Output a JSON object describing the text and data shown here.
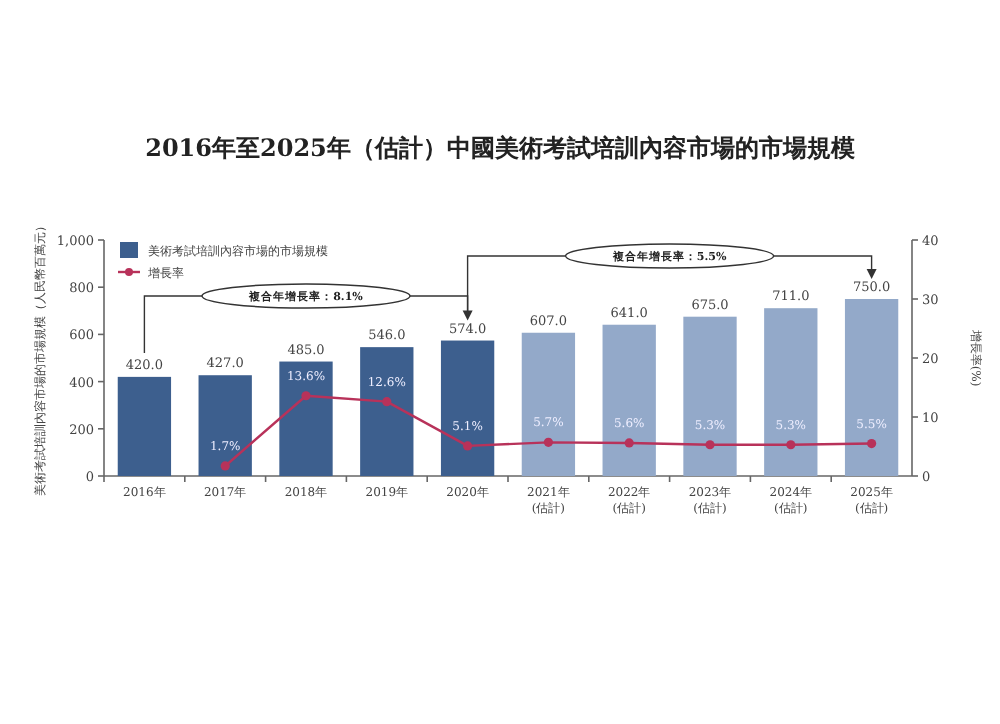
{
  "chart_data": {
    "type": "bar",
    "title": "2016年至2025年（估計）中國美術考試培訓內容市場的市場規模",
    "ylabel": "美術考試培訓內容市場的市場規模（人民幣百萬元）",
    "y2label": "增長率(%)",
    "categories": [
      "2016年",
      "2017年",
      "2018年",
      "2019年",
      "2020年",
      "2021年\n(估計)",
      "2022年\n(估計)",
      "2023年\n(估計)",
      "2024年\n(估計)",
      "2025年\n(估計)"
    ],
    "series": [
      {
        "name": "美術考試培訓內容市場的市場規模",
        "color": "#3d5f8e",
        "colors": [
          "#3d5f8e",
          "#3d5f8e",
          "#3d5f8e",
          "#3d5f8e",
          "#3d5f8e",
          "#93a9c9",
          "#93a9c9",
          "#93a9c9",
          "#93a9c9",
          "#93a9c9"
        ],
        "values": [
          420.0,
          427.0,
          485.0,
          546.0,
          574.0,
          607.0,
          641.0,
          675.0,
          711.0,
          750.0
        ],
        "value_labels": [
          "420.0",
          "427.0",
          "485.0",
          "546.0",
          "574.0",
          "607.0",
          "641.0",
          "675.0",
          "711.0",
          "750.0"
        ]
      },
      {
        "name": "增長率",
        "type": "line",
        "axis": "y2",
        "color": "#b8325a",
        "marker": "circle",
        "values": [
          null,
          1.7,
          13.6,
          12.6,
          5.1,
          5.7,
          5.6,
          5.3,
          5.3,
          5.5
        ],
        "value_labels": [
          null,
          "1.7%",
          "13.6%",
          "12.6%",
          "5.1%",
          "5.7%",
          "5.6%",
          "5.3%",
          "5.3%",
          "5.5%"
        ]
      }
    ],
    "ylim": [
      0,
      1000
    ],
    "yticks": [
      0,
      200,
      400,
      600,
      800,
      {
        "value": 1000,
        "label": "1,000"
      }
    ],
    "y2lim": [
      0,
      40
    ],
    "y2ticks": [
      0,
      10,
      20,
      30,
      40
    ],
    "legend": "top left",
    "annotations": [
      "複合年增長率：8.1%",
      "複合年增長率：5.5%"
    ]
  }
}
